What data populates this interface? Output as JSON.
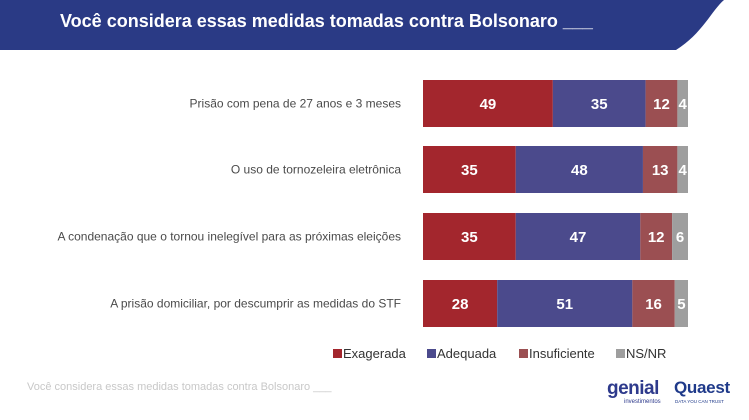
{
  "header": {
    "title": "Você considera essas medidas tomadas contra Bolsonaro ___"
  },
  "chart_data": {
    "type": "bar",
    "orientation": "horizontal",
    "stacked": true,
    "categories": [
      "Prisão com pena de 27 anos e 3 meses",
      "O uso de tornozeleira eletrônica",
      "A condenação que o tornou inelegível para as próximas eleições",
      "A prisão domiciliar, por descumprir as medidas do STF"
    ],
    "series": [
      {
        "name": "Exagerada",
        "color": "#a3262d",
        "values": [
          49,
          35,
          35,
          28
        ]
      },
      {
        "name": "Adequada",
        "color": "#4b4a8c",
        "values": [
          35,
          48,
          47,
          51
        ]
      },
      {
        "name": "Insuficiente",
        "color": "#9b4f52",
        "values": [
          12,
          13,
          12,
          16
        ]
      },
      {
        "name": "NS/NR",
        "color": "#9e9e9e",
        "values": [
          4,
          4,
          6,
          5
        ]
      }
    ],
    "xlim": [
      0,
      100
    ],
    "legend_position": "bottom-right",
    "grid": false
  },
  "footnote": "Você considera essas medidas tomadas contra Bolsonaro ___",
  "logos": {
    "genial_name": "genial",
    "genial_sub": "investimentos",
    "quaest_name": "Quaest",
    "quaest_sub": "DATA YOU CAN TRUST",
    "header_color": "#2a3a85"
  }
}
